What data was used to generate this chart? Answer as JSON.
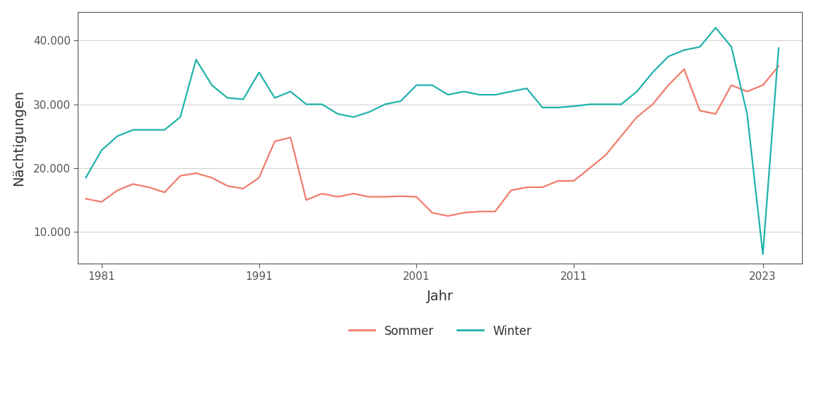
{
  "title": "",
  "xlabel": "Jahr",
  "ylabel": "Nächtigungen",
  "background_color": "#ffffff",
  "plot_background": "#ffffff",
  "grid_color": "#d3d3d3",
  "sommer_color": "#F07B6B",
  "winter_color": "#20B2AA",
  "legend_labels": [
    "Sommer",
    "Winter"
  ],
  "years": [
    1980,
    1981,
    1982,
    1983,
    1984,
    1985,
    1986,
    1987,
    1988,
    1989,
    1990,
    1991,
    1992,
    1993,
    1994,
    1995,
    1996,
    1997,
    1998,
    1999,
    2000,
    2001,
    2002,
    2003,
    2004,
    2005,
    2006,
    2007,
    2008,
    2009,
    2010,
    2011,
    2012,
    2013,
    2014,
    2015,
    2016,
    2017,
    2018,
    2019,
    2020,
    2021,
    2022,
    2023,
    2024
  ],
  "sommer": [
    15200,
    14700,
    16500,
    17500,
    17000,
    16200,
    18800,
    19200,
    18500,
    17200,
    16800,
    18500,
    24200,
    24800,
    15000,
    16000,
    15500,
    16000,
    15500,
    15500,
    15600,
    15500,
    13000,
    12500,
    13000,
    13200,
    13200,
    16500,
    17000,
    17000,
    18000,
    18000,
    20000,
    22000,
    25000,
    28000,
    30000,
    33000,
    35500,
    29000,
    28500,
    33000,
    32000,
    33000,
    36000
  ],
  "winter": [
    18500,
    22800,
    25000,
    26000,
    26000,
    26000,
    28000,
    37000,
    33000,
    31000,
    30800,
    35000,
    31000,
    32000,
    30000,
    30000,
    28500,
    28000,
    28800,
    30000,
    30500,
    33000,
    33000,
    31500,
    32000,
    31500,
    31500,
    32000,
    32500,
    29500,
    29500,
    29700,
    30000,
    30000,
    30000,
    32000,
    35000,
    37500,
    38500,
    39000,
    42000,
    39000,
    28500,
    6500,
    38800
  ],
  "ylim": [
    5000,
    44500
  ],
  "yticks": [
    10000,
    20000,
    30000,
    40000
  ],
  "xticks": [
    1981,
    1991,
    2001,
    2011,
    2023
  ],
  "xlim": [
    1979.5,
    2025.5
  ],
  "line_width": 1.6,
  "tick_color": "#555555",
  "label_color": "#333333",
  "axis_color": "#555555"
}
